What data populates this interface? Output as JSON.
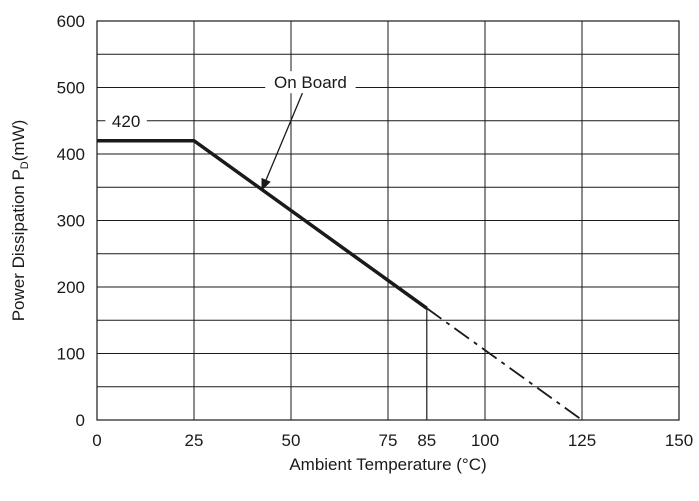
{
  "chart_data": {
    "type": "line",
    "title": "",
    "xlabel": "Ambient Temperature (°C)",
    "ylabel_prefix": "Power Dissipation P",
    "ylabel_sub": "D",
    "ylabel_suffix": "(mW)",
    "xlim": [
      0,
      150
    ],
    "ylim": [
      0,
      600
    ],
    "x_ticks": [
      0,
      25,
      50,
      75,
      85,
      100,
      125,
      150
    ],
    "y_ticks": [
      0,
      100,
      200,
      300,
      400,
      500,
      600
    ],
    "x_gridlines": [
      0,
      25,
      50,
      75,
      100,
      125,
      150
    ],
    "y_gridlines": [
      0,
      50,
      100,
      150,
      200,
      250,
      300,
      350,
      400,
      450,
      500,
      550,
      600
    ],
    "grid": true,
    "series": [
      {
        "name": "On Board",
        "solid": [
          [
            0,
            420
          ],
          [
            25,
            420
          ],
          [
            85,
            168
          ]
        ],
        "dashed": [
          [
            85,
            168
          ],
          [
            125,
            0
          ]
        ]
      }
    ],
    "marker_line": {
      "x": 85,
      "y_from": 0,
      "y_to": 168
    },
    "annotations": [
      {
        "text": "420",
        "x": 7.5,
        "y": 450
      },
      {
        "text": "On Board",
        "x": 55,
        "y": 508,
        "arrow_to": [
          42.5,
          346
        ]
      }
    ]
  }
}
